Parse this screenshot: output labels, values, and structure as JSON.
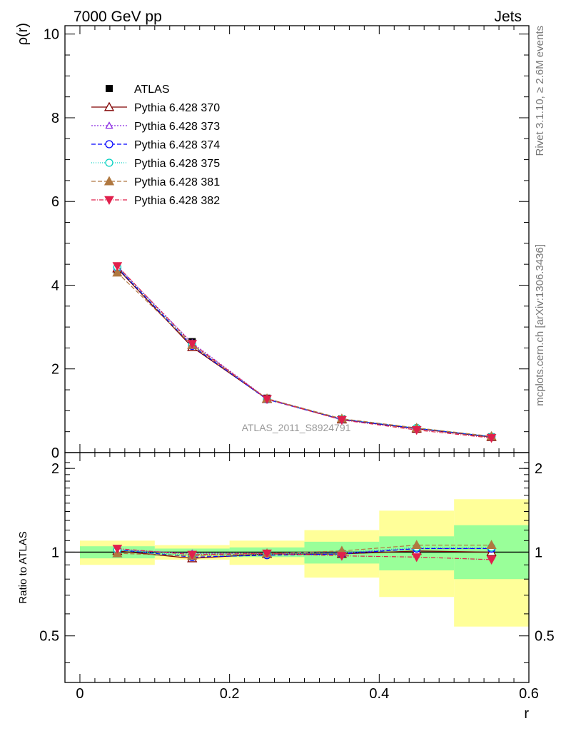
{
  "header": {
    "left": "7000 GeV pp",
    "right": "Jets"
  },
  "side_labels": {
    "top": "Rivet 3.1.10, ≥ 2.6M events",
    "bottom": "mcplots.cern.ch [arXiv:1306.3436]"
  },
  "watermark": "ATLAS_2011_S8924791",
  "colors": {
    "data": "#000000",
    "green_band": "#99ff99",
    "yellow_band": "#ffff99"
  },
  "chart_data": [
    {
      "type": "line",
      "panel": "main",
      "ylabel": "ρ(r)",
      "xlim": [
        -0.02,
        0.6
      ],
      "ylim": [
        0,
        10.2
      ],
      "x_ticks": [
        0,
        0.2,
        0.4,
        0.6
      ],
      "y_ticks": [
        0,
        2,
        4,
        6,
        8,
        10
      ],
      "y_tick_labels": [
        "0",
        "2",
        "4",
        "6",
        "8",
        "10"
      ],
      "x": [
        0.05,
        0.15,
        0.25,
        0.35,
        0.45,
        0.55
      ],
      "series": [
        {
          "name": "ATLAS",
          "color": "#000000",
          "marker": "square",
          "dash": "",
          "values": [
            4.35,
            2.65,
            1.3,
            0.8,
            0.56,
            0.37
          ]
        },
        {
          "name": "Pythia 6.428 370",
          "color": "#800000",
          "marker": "triangle-open",
          "dash": "",
          "values": [
            4.4,
            2.52,
            1.28,
            0.79,
            0.57,
            0.37
          ]
        },
        {
          "name": "Pythia 6.428 373",
          "color": "#8a2be2",
          "marker": "triangle-open-small",
          "dash": "2,2",
          "values": [
            4.45,
            2.62,
            1.29,
            0.8,
            0.58,
            0.38
          ]
        },
        {
          "name": "Pythia 6.428 374",
          "color": "#0000ff",
          "marker": "circle-open",
          "dash": "6,3",
          "values": [
            4.42,
            2.55,
            1.27,
            0.79,
            0.58,
            0.38
          ]
        },
        {
          "name": "Pythia 6.428 375",
          "color": "#00d0c0",
          "marker": "circle-open",
          "dash": "1,2",
          "values": [
            4.43,
            2.58,
            1.28,
            0.8,
            0.59,
            0.38
          ]
        },
        {
          "name": "Pythia 6.428 381",
          "color": "#b07840",
          "marker": "triangle-filled",
          "dash": "6,3",
          "values": [
            4.3,
            2.57,
            1.29,
            0.81,
            0.59,
            0.39
          ]
        },
        {
          "name": "Pythia 6.428 382",
          "color": "#e0204c",
          "marker": "triangle-down-filled",
          "dash": "6,2,1,2",
          "values": [
            4.46,
            2.6,
            1.28,
            0.78,
            0.54,
            0.35
          ]
        }
      ]
    },
    {
      "type": "line",
      "panel": "ratio",
      "ylabel": "Ratio to ATLAS",
      "xlabel": "r",
      "xlim": [
        -0.02,
        0.6
      ],
      "ylim": [
        0.34,
        2.28
      ],
      "x_ticks": [
        0,
        0.2,
        0.4,
        0.6
      ],
      "x_tick_labels": [
        "0",
        "0.2",
        "0.4",
        "0.6"
      ],
      "y_ticks": [
        0.5,
        1,
        2
      ],
      "y_tick_labels": [
        "0.5",
        "1",
        "2"
      ],
      "x": [
        0.05,
        0.15,
        0.25,
        0.35,
        0.45,
        0.55
      ],
      "bands": {
        "x_edges": [
          0,
          0.1,
          0.2,
          0.3,
          0.4,
          0.5,
          0.6
        ],
        "green": [
          [
            0.95,
            1.05
          ],
          [
            0.97,
            1.03
          ],
          [
            0.96,
            1.04
          ],
          [
            0.91,
            1.09
          ],
          [
            0.86,
            1.14
          ],
          [
            0.8,
            1.25
          ]
        ],
        "yellow": [
          [
            0.9,
            1.1
          ],
          [
            0.94,
            1.06
          ],
          [
            0.9,
            1.1
          ],
          [
            0.81,
            1.2
          ],
          [
            0.69,
            1.41
          ],
          [
            0.54,
            1.55
          ]
        ]
      },
      "series": [
        {
          "name": "Pythia 6.428 370",
          "values": [
            1.01,
            0.95,
            0.985,
            0.985,
            1.01,
            1.0
          ]
        },
        {
          "name": "Pythia 6.428 373",
          "values": [
            1.02,
            0.99,
            0.99,
            0.995,
            1.03,
            1.03
          ]
        },
        {
          "name": "Pythia 6.428 374",
          "values": [
            1.02,
            0.96,
            0.975,
            0.985,
            1.03,
            1.03
          ]
        },
        {
          "name": "Pythia 6.428 375",
          "values": [
            1.02,
            0.97,
            0.985,
            0.995,
            1.04,
            1.04
          ]
        },
        {
          "name": "Pythia 6.428 381",
          "values": [
            0.99,
            0.97,
            0.99,
            1.01,
            1.06,
            1.06
          ]
        },
        {
          "name": "Pythia 6.428 382",
          "values": [
            1.03,
            0.98,
            0.99,
            0.97,
            0.96,
            0.94
          ]
        }
      ]
    }
  ]
}
